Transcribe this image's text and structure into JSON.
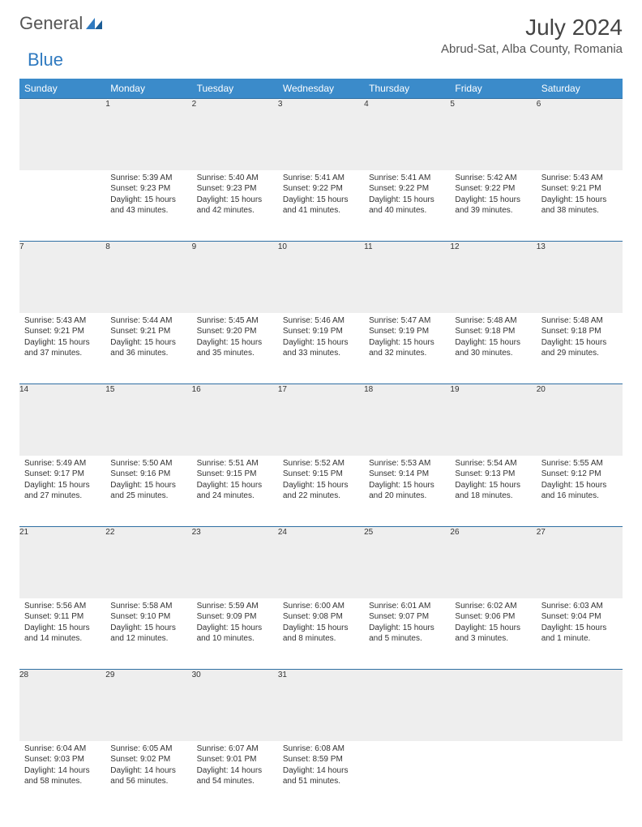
{
  "logo": {
    "word1": "General",
    "word2": "Blue"
  },
  "title": "July 2024",
  "location": "Abrud-Sat, Alba County, Romania",
  "colors": {
    "header_bg": "#3b8bca",
    "header_text": "#ffffff",
    "daynum_bg": "#eeeeee",
    "row_border": "#2f6fa3",
    "body_text": "#333333",
    "logo_gray": "#555555",
    "logo_blue": "#2f7ac0"
  },
  "weekdays": [
    "Sunday",
    "Monday",
    "Tuesday",
    "Wednesday",
    "Thursday",
    "Friday",
    "Saturday"
  ],
  "first_weekday_index": 1,
  "days": [
    {
      "n": 1,
      "sunrise": "5:39 AM",
      "sunset": "9:23 PM",
      "day_h": 15,
      "day_m": 43
    },
    {
      "n": 2,
      "sunrise": "5:40 AM",
      "sunset": "9:23 PM",
      "day_h": 15,
      "day_m": 42
    },
    {
      "n": 3,
      "sunrise": "5:41 AM",
      "sunset": "9:22 PM",
      "day_h": 15,
      "day_m": 41
    },
    {
      "n": 4,
      "sunrise": "5:41 AM",
      "sunset": "9:22 PM",
      "day_h": 15,
      "day_m": 40
    },
    {
      "n": 5,
      "sunrise": "5:42 AM",
      "sunset": "9:22 PM",
      "day_h": 15,
      "day_m": 39
    },
    {
      "n": 6,
      "sunrise": "5:43 AM",
      "sunset": "9:21 PM",
      "day_h": 15,
      "day_m": 38
    },
    {
      "n": 7,
      "sunrise": "5:43 AM",
      "sunset": "9:21 PM",
      "day_h": 15,
      "day_m": 37
    },
    {
      "n": 8,
      "sunrise": "5:44 AM",
      "sunset": "9:21 PM",
      "day_h": 15,
      "day_m": 36
    },
    {
      "n": 9,
      "sunrise": "5:45 AM",
      "sunset": "9:20 PM",
      "day_h": 15,
      "day_m": 35
    },
    {
      "n": 10,
      "sunrise": "5:46 AM",
      "sunset": "9:19 PM",
      "day_h": 15,
      "day_m": 33
    },
    {
      "n": 11,
      "sunrise": "5:47 AM",
      "sunset": "9:19 PM",
      "day_h": 15,
      "day_m": 32
    },
    {
      "n": 12,
      "sunrise": "5:48 AM",
      "sunset": "9:18 PM",
      "day_h": 15,
      "day_m": 30
    },
    {
      "n": 13,
      "sunrise": "5:48 AM",
      "sunset": "9:18 PM",
      "day_h": 15,
      "day_m": 29
    },
    {
      "n": 14,
      "sunrise": "5:49 AM",
      "sunset": "9:17 PM",
      "day_h": 15,
      "day_m": 27
    },
    {
      "n": 15,
      "sunrise": "5:50 AM",
      "sunset": "9:16 PM",
      "day_h": 15,
      "day_m": 25
    },
    {
      "n": 16,
      "sunrise": "5:51 AM",
      "sunset": "9:15 PM",
      "day_h": 15,
      "day_m": 24
    },
    {
      "n": 17,
      "sunrise": "5:52 AM",
      "sunset": "9:15 PM",
      "day_h": 15,
      "day_m": 22
    },
    {
      "n": 18,
      "sunrise": "5:53 AM",
      "sunset": "9:14 PM",
      "day_h": 15,
      "day_m": 20
    },
    {
      "n": 19,
      "sunrise": "5:54 AM",
      "sunset": "9:13 PM",
      "day_h": 15,
      "day_m": 18
    },
    {
      "n": 20,
      "sunrise": "5:55 AM",
      "sunset": "9:12 PM",
      "day_h": 15,
      "day_m": 16
    },
    {
      "n": 21,
      "sunrise": "5:56 AM",
      "sunset": "9:11 PM",
      "day_h": 15,
      "day_m": 14
    },
    {
      "n": 22,
      "sunrise": "5:58 AM",
      "sunset": "9:10 PM",
      "day_h": 15,
      "day_m": 12
    },
    {
      "n": 23,
      "sunrise": "5:59 AM",
      "sunset": "9:09 PM",
      "day_h": 15,
      "day_m": 10
    },
    {
      "n": 24,
      "sunrise": "6:00 AM",
      "sunset": "9:08 PM",
      "day_h": 15,
      "day_m": 8
    },
    {
      "n": 25,
      "sunrise": "6:01 AM",
      "sunset": "9:07 PM",
      "day_h": 15,
      "day_m": 5
    },
    {
      "n": 26,
      "sunrise": "6:02 AM",
      "sunset": "9:06 PM",
      "day_h": 15,
      "day_m": 3
    },
    {
      "n": 27,
      "sunrise": "6:03 AM",
      "sunset": "9:04 PM",
      "day_h": 15,
      "day_m": 1
    },
    {
      "n": 28,
      "sunrise": "6:04 AM",
      "sunset": "9:03 PM",
      "day_h": 14,
      "day_m": 58
    },
    {
      "n": 29,
      "sunrise": "6:05 AM",
      "sunset": "9:02 PM",
      "day_h": 14,
      "day_m": 56
    },
    {
      "n": 30,
      "sunrise": "6:07 AM",
      "sunset": "9:01 PM",
      "day_h": 14,
      "day_m": 54
    },
    {
      "n": 31,
      "sunrise": "6:08 AM",
      "sunset": "8:59 PM",
      "day_h": 14,
      "day_m": 51
    }
  ],
  "labels": {
    "sunrise": "Sunrise:",
    "sunset": "Sunset:",
    "daylight": "Daylight:",
    "hours": "hours",
    "and": "and",
    "minute": "minute.",
    "minutes": "minutes."
  }
}
